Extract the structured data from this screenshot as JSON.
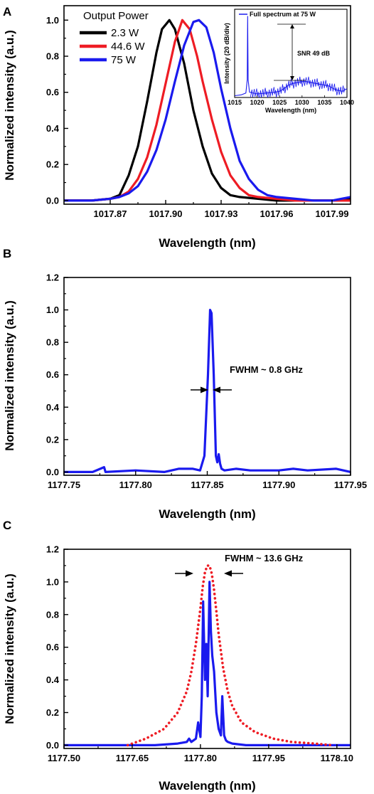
{
  "chart_data": [
    {
      "panel": "A",
      "type": "line",
      "xlabel": "Wavelength (nm)",
      "ylabel": "Normalized intensity (a.u.)",
      "xlim": [
        1017.845,
        1018.0
      ],
      "ylim": [
        -0.02,
        1.08
      ],
      "xticks": [
        "1017.87",
        "1017.90",
        "1017.93",
        "1017.96",
        "1017.99"
      ],
      "xtick_values": [
        1017.87,
        1017.9,
        1017.93,
        1017.96,
        1017.99
      ],
      "yticks": [
        "0.0",
        "0.2",
        "0.4",
        "0.6",
        "0.8",
        "1.0"
      ],
      "ytick_values": [
        0,
        0.2,
        0.4,
        0.6,
        0.8,
        1.0
      ],
      "legend_title": "Output Power",
      "legend_position": "top-left",
      "grid": false,
      "series": [
        {
          "name": "2.3 W",
          "color": "#000000",
          "x": [
            1017.845,
            1017.86,
            1017.87,
            1017.875,
            1017.88,
            1017.885,
            1017.89,
            1017.895,
            1017.898,
            1017.902,
            1017.905,
            1017.91,
            1017.915,
            1017.92,
            1017.925,
            1017.93,
            1017.935,
            1017.94,
            1017.95,
            1017.96,
            1017.97,
            1017.98,
            1017.99,
            1018.0
          ],
          "y": [
            0.0,
            0.0,
            0.01,
            0.03,
            0.14,
            0.3,
            0.55,
            0.82,
            0.95,
            1.0,
            0.95,
            0.76,
            0.5,
            0.3,
            0.15,
            0.07,
            0.03,
            0.02,
            0.01,
            0.0,
            0.0,
            0.0,
            0.0,
            0.01
          ]
        },
        {
          "name": "44.6 W",
          "color": "#ee1c24",
          "x": [
            1017.845,
            1017.86,
            1017.87,
            1017.875,
            1017.88,
            1017.885,
            1017.89,
            1017.895,
            1017.9,
            1017.905,
            1017.909,
            1017.913,
            1017.917,
            1017.92,
            1017.925,
            1017.93,
            1017.935,
            1017.94,
            1017.945,
            1017.95,
            1017.96,
            1017.97,
            1017.98,
            1017.99,
            1018.0
          ],
          "y": [
            0.0,
            0.0,
            0.01,
            0.02,
            0.05,
            0.12,
            0.24,
            0.42,
            0.65,
            0.88,
            1.0,
            0.95,
            0.8,
            0.66,
            0.45,
            0.27,
            0.14,
            0.07,
            0.03,
            0.02,
            0.01,
            0.0,
            0.0,
            0.0,
            0.0
          ]
        },
        {
          "name": "75 W",
          "color": "#1a1aee",
          "x": [
            1017.845,
            1017.86,
            1017.87,
            1017.875,
            1017.88,
            1017.885,
            1017.89,
            1017.895,
            1017.9,
            1017.905,
            1017.91,
            1017.915,
            1017.918,
            1017.922,
            1017.926,
            1017.93,
            1017.935,
            1017.94,
            1017.945,
            1017.95,
            1017.955,
            1017.96,
            1017.97,
            1017.98,
            1017.99,
            1018.0
          ],
          "y": [
            0.0,
            0.0,
            0.01,
            0.02,
            0.04,
            0.08,
            0.16,
            0.28,
            0.45,
            0.66,
            0.86,
            0.99,
            1.0,
            0.96,
            0.82,
            0.62,
            0.4,
            0.22,
            0.12,
            0.06,
            0.03,
            0.02,
            0.01,
            0.0,
            0.0,
            0.02
          ]
        }
      ],
      "inset": {
        "type": "line",
        "legend": "Full spectrum at 75 W",
        "xlabel": "Wavelength (nm)",
        "ylabel": "Intensity (20 dB/div)",
        "xlim": [
          1015,
          1040
        ],
        "xticks": [
          "1015",
          "1020",
          "1025",
          "1030",
          "1035",
          "1040"
        ],
        "xtick_values": [
          1015,
          1020,
          1025,
          1030,
          1035,
          1040
        ],
        "annotation": "SNR 49 dB",
        "color": "#1a1aee",
        "x": [
          1015.0,
          1016.5,
          1017.5,
          1017.8,
          1017.9,
          1018.0,
          1018.3,
          1020.0,
          1022.0,
          1024.0,
          1025.0,
          1026.0,
          1027.0,
          1028.0,
          1029.0,
          1030.0,
          1031.0,
          1032.0,
          1033.0,
          1034.0,
          1035.0,
          1036.0,
          1037.0,
          1038.0,
          1039.0,
          1040.0
        ],
        "y": [
          0.02,
          0.03,
          0.05,
          0.2,
          0.92,
          0.2,
          0.06,
          0.04,
          0.05,
          0.06,
          0.07,
          0.1,
          0.14,
          0.16,
          0.17,
          0.18,
          0.18,
          0.17,
          0.16,
          0.15,
          0.14,
          0.13,
          0.1,
          0.08,
          0.07,
          0.1
        ]
      }
    },
    {
      "panel": "B",
      "type": "line",
      "xlabel": "Wavelength (nm)",
      "ylabel": "Normalized intensity (a.u.)",
      "xlim": [
        1177.75,
        1177.95
      ],
      "ylim": [
        -0.02,
        1.2
      ],
      "xticks": [
        "1177.75",
        "1177.80",
        "1177.85",
        "1177.90",
        "1177.95"
      ],
      "xtick_values": [
        1177.75,
        1177.8,
        1177.85,
        1177.9,
        1177.95
      ],
      "yticks": [
        "0.0",
        "0.2",
        "0.4",
        "0.6",
        "0.8",
        "1.0",
        "1.2"
      ],
      "ytick_values": [
        0,
        0.2,
        0.4,
        0.6,
        0.8,
        1.0,
        1.2
      ],
      "annotation": "FWHM ~ 0.8 GHz",
      "grid": false,
      "series": [
        {
          "color": "#1a1aee",
          "x": [
            1177.75,
            1177.77,
            1177.778,
            1177.779,
            1177.8,
            1177.82,
            1177.83,
            1177.84,
            1177.845,
            1177.848,
            1177.8505,
            1177.852,
            1177.853,
            1177.8545,
            1177.856,
            1177.857,
            1177.858,
            1177.859,
            1177.86,
            1177.862,
            1177.87,
            1177.88,
            1177.9,
            1177.91,
            1177.92,
            1177.94,
            1177.95
          ],
          "y": [
            0.0,
            0.0,
            0.03,
            0.0,
            0.01,
            0.0,
            0.02,
            0.02,
            0.01,
            0.1,
            0.6,
            1.0,
            0.98,
            0.6,
            0.1,
            0.06,
            0.11,
            0.05,
            0.02,
            0.01,
            0.02,
            0.01,
            0.01,
            0.02,
            0.01,
            0.02,
            0.0
          ]
        }
      ]
    },
    {
      "panel": "C",
      "type": "line",
      "xlabel": "Wavelength (nm)",
      "ylabel": "Normalized intensity (a.u.)",
      "xlim": [
        1177.5,
        1178.13
      ],
      "ylim": [
        -0.02,
        1.2
      ],
      "xticks": [
        "1177.50",
        "1177.65",
        "1177.80",
        "1177.95",
        "1178.10"
      ],
      "xtick_values": [
        1177.5,
        1177.65,
        1177.8,
        1177.95,
        1178.1
      ],
      "yticks": [
        "0.0",
        "0.2",
        "0.4",
        "0.6",
        "0.8",
        "1.0",
        "1.2"
      ],
      "ytick_values": [
        0,
        0.2,
        0.4,
        0.6,
        0.8,
        1.0,
        1.2
      ],
      "annotation": "FWHM ~ 13.6 GHz",
      "grid": false,
      "series": [
        {
          "style": "solid",
          "color": "#1a1aee",
          "x": [
            1177.5,
            1177.7,
            1177.75,
            1177.77,
            1177.775,
            1177.78,
            1177.79,
            1177.795,
            1177.8,
            1177.803,
            1177.806,
            1177.81,
            1177.813,
            1177.816,
            1177.82,
            1177.823,
            1177.826,
            1177.83,
            1177.835,
            1177.84,
            1177.845,
            1177.848,
            1177.852,
            1177.856,
            1177.86,
            1177.87,
            1177.9,
            1178.13
          ],
          "y": [
            0.0,
            0.0,
            0.01,
            0.02,
            0.04,
            0.02,
            0.04,
            0.14,
            0.05,
            0.3,
            0.88,
            0.4,
            0.62,
            0.3,
            1.0,
            0.7,
            0.55,
            0.45,
            0.2,
            0.1,
            0.06,
            0.3,
            0.06,
            0.03,
            0.02,
            0.01,
            0.0,
            0.0
          ]
        },
        {
          "style": "dotted",
          "color": "#ee1c24",
          "x": [
            1177.64,
            1177.68,
            1177.72,
            1177.75,
            1177.77,
            1177.78,
            1177.79,
            1177.8,
            1177.805,
            1177.81,
            1177.815,
            1177.82,
            1177.825,
            1177.83,
            1177.835,
            1177.84,
            1177.85,
            1177.86,
            1177.87,
            1177.89,
            1177.92,
            1177.96,
            1178.0,
            1178.05,
            1178.09
          ],
          "y": [
            0.0,
            0.04,
            0.1,
            0.2,
            0.33,
            0.45,
            0.62,
            0.84,
            0.97,
            1.06,
            1.1,
            1.1,
            1.05,
            0.95,
            0.82,
            0.68,
            0.47,
            0.33,
            0.24,
            0.14,
            0.08,
            0.04,
            0.02,
            0.01,
            0.0
          ]
        }
      ]
    }
  ]
}
